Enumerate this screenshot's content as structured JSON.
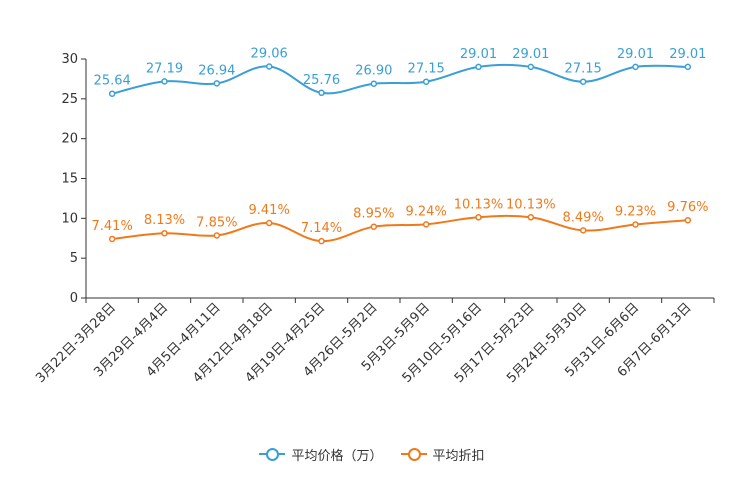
{
  "chart_data": {
    "type": "line",
    "title": "",
    "xlabel": "",
    "ylabel": "",
    "ylim": [
      0,
      30
    ],
    "yticks": [
      0,
      5,
      10,
      15,
      20,
      25,
      30
    ],
    "categories": [
      "3月22日-3月28日",
      "3月29日-4月4日",
      "4月5日-4月11日",
      "4月12日-4月18日",
      "4月19日-4月25日",
      "4月26日-5月2日",
      "5月3日-5月9日",
      "5月10日-5月16日",
      "5月17日-5月23日",
      "5月24日-5月30日",
      "5月31日-6月6日",
      "6月7日-6月13日"
    ],
    "series": [
      {
        "name": "平均价格（万）",
        "color": "#3a9fd6",
        "values": [
          25.64,
          27.19,
          26.94,
          29.06,
          25.76,
          26.9,
          27.15,
          29.01,
          29.01,
          27.15,
          29.01,
          29.01
        ],
        "labels": [
          "25.64",
          "27.19",
          "26.94",
          "29.06",
          "25.76",
          "26.90",
          "27.15",
          "29.01",
          "29.01",
          "27.15",
          "29.01",
          "29.01"
        ]
      },
      {
        "name": "平均折扣",
        "color": "#f07a1a",
        "values": [
          7.41,
          8.13,
          7.85,
          9.41,
          7.14,
          8.95,
          9.24,
          10.13,
          10.13,
          8.49,
          9.23,
          9.76
        ],
        "labels": [
          "7.41%",
          "8.13%",
          "7.85%",
          "9.41%",
          "7.14%",
          "8.95%",
          "9.24%",
          "10.13%",
          "10.13%",
          "8.49%",
          "9.23%",
          "9.76%"
        ]
      }
    ],
    "legend_position": "bottom-center",
    "grid": false
  }
}
